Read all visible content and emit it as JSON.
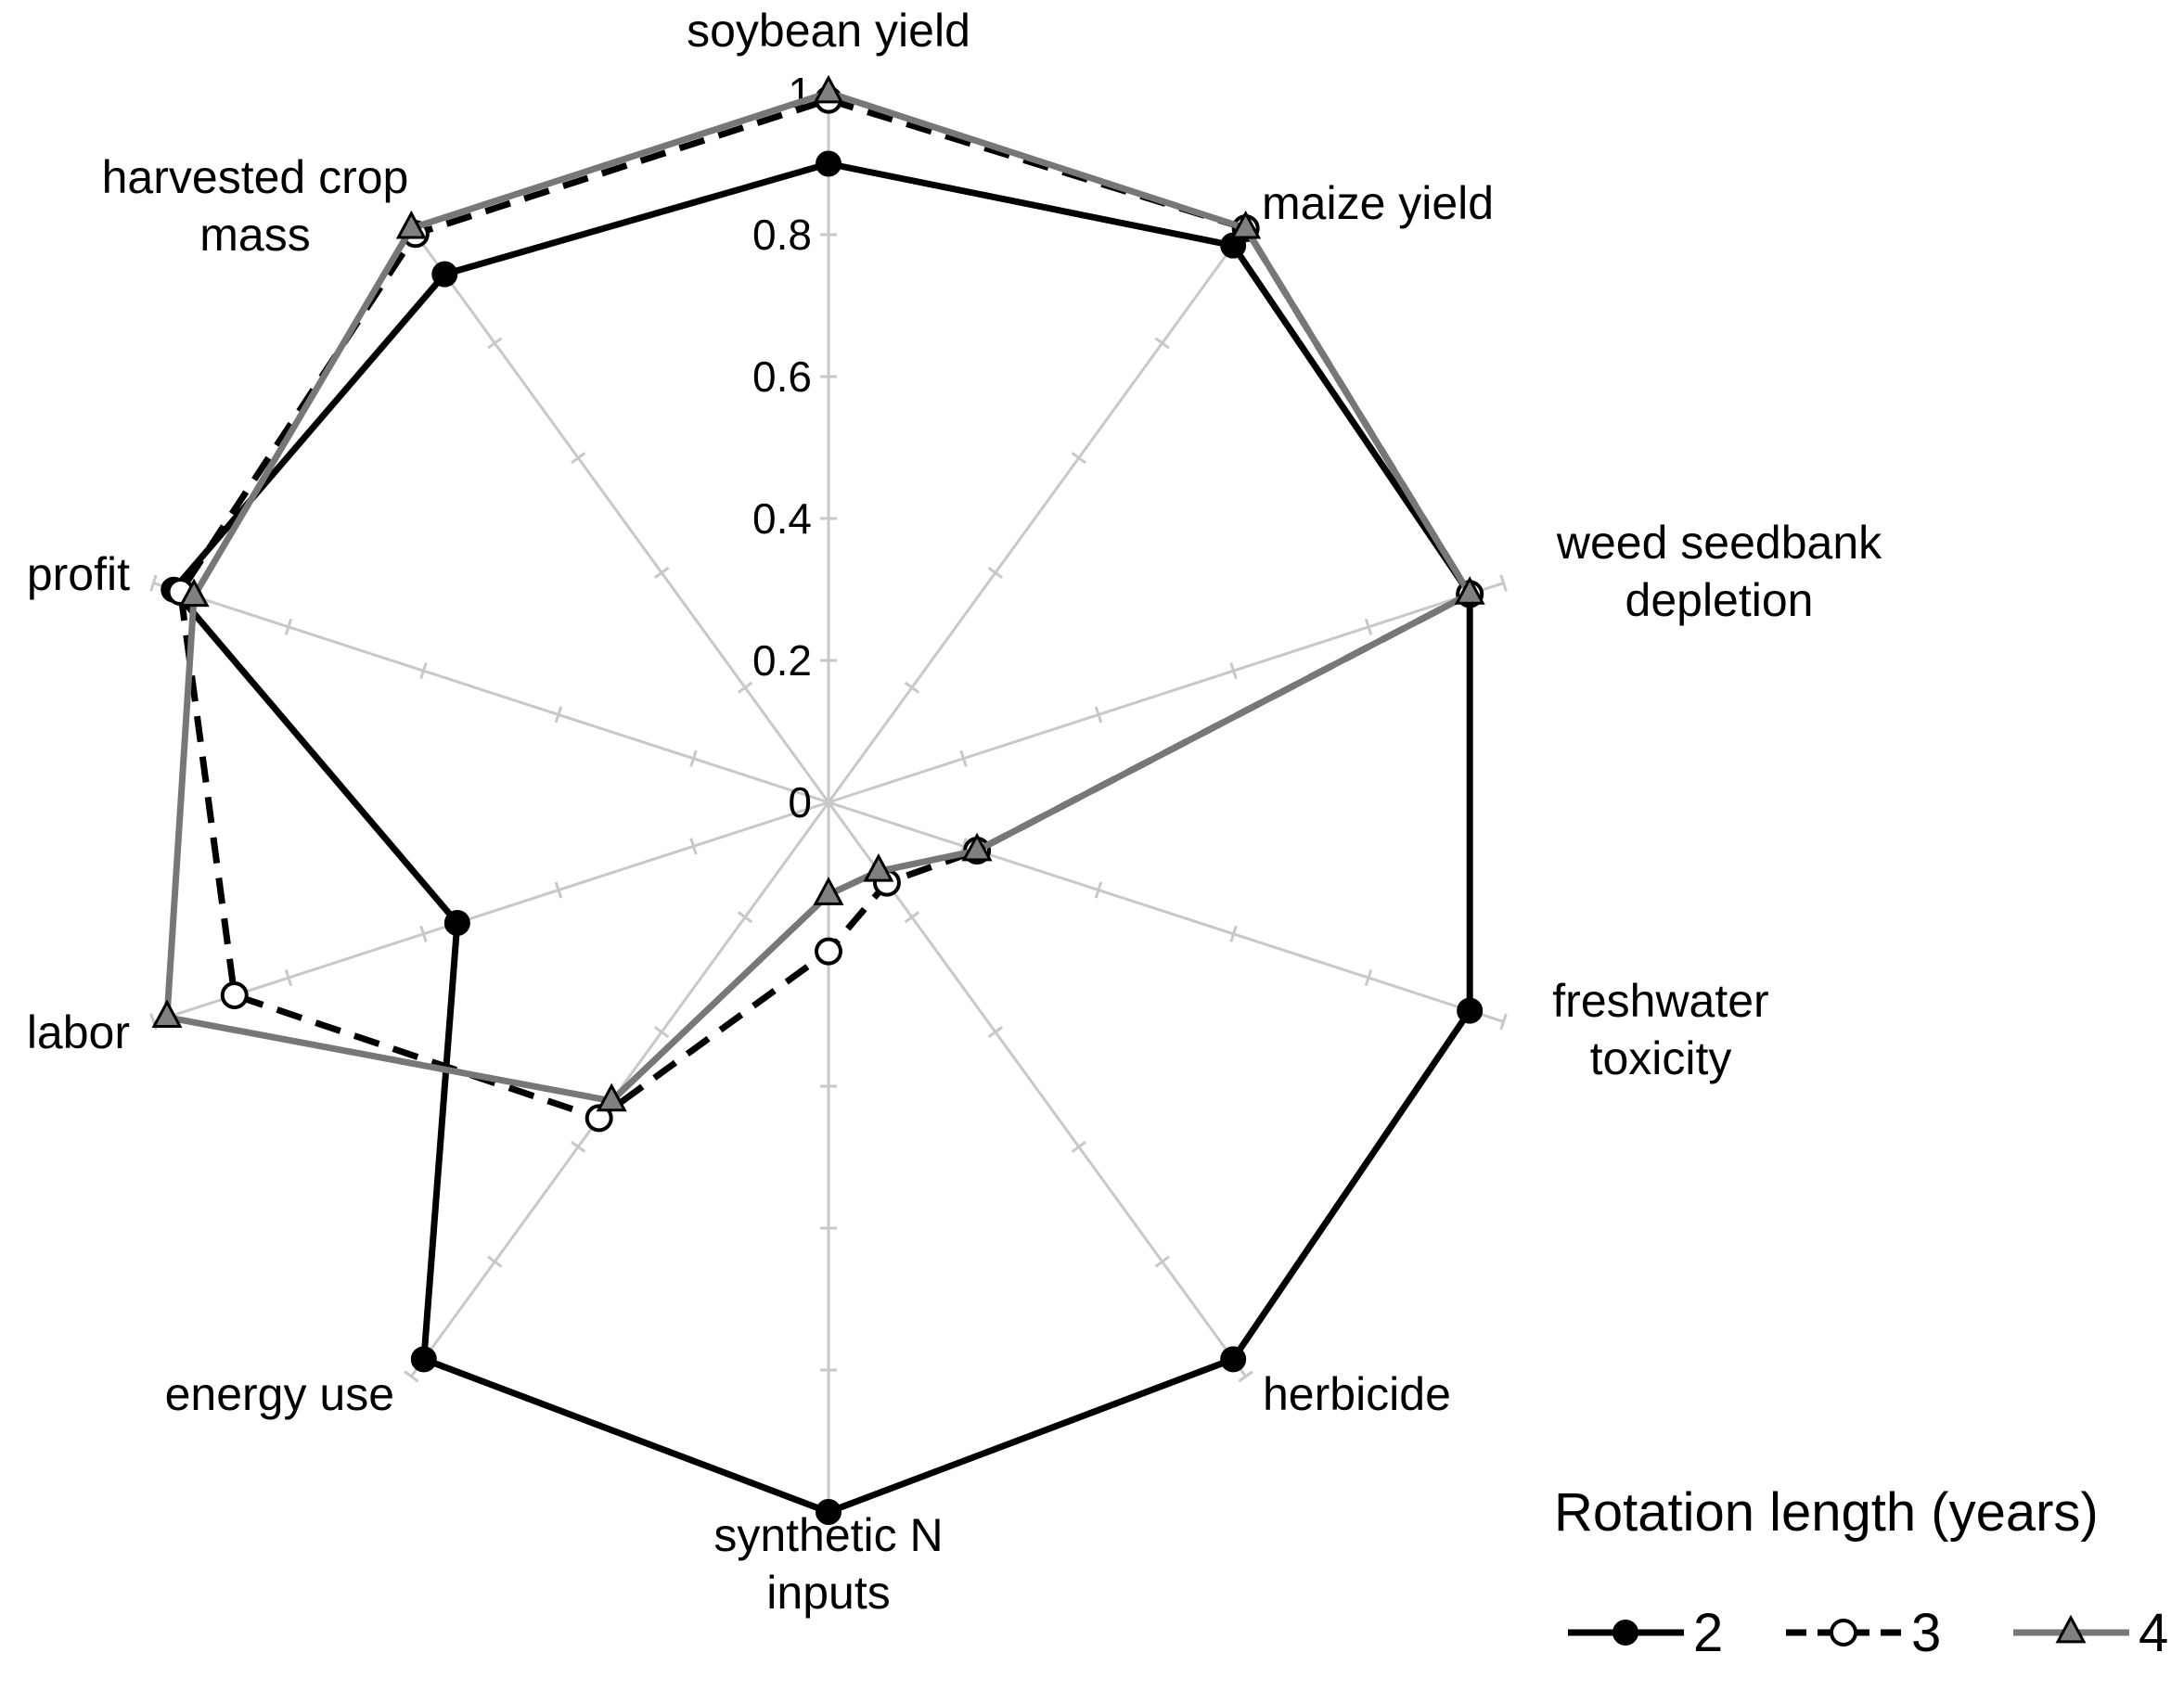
{
  "chart_data": {
    "type": "radar",
    "axes": [
      {
        "label": [
          "soybean yield"
        ]
      },
      {
        "label": [
          "maize yield"
        ]
      },
      {
        "label": [
          "weed seedbank",
          "depletion"
        ]
      },
      {
        "label": [
          "freshwater",
          "toxicity"
        ]
      },
      {
        "label": [
          "herbicide"
        ]
      },
      {
        "label": [
          "synthetic N",
          "inputs"
        ]
      },
      {
        "label": [
          "energy use"
        ]
      },
      {
        "label": [
          "labor"
        ]
      },
      {
        "label": [
          "profit"
        ]
      },
      {
        "label": [
          "harvested crop",
          "mass"
        ]
      }
    ],
    "ticks": [
      "0",
      "0.2",
      "0.4",
      "0.6",
      "0.8",
      "1"
    ],
    "range": [
      0,
      1
    ],
    "grid": true,
    "legend": {
      "title": "Rotation length (years)",
      "position": "bottom-right"
    },
    "series": [
      {
        "name": "2",
        "values": [
          0.9,
          0.97,
          0.95,
          0.95,
          0.97,
          1.0,
          0.97,
          0.55,
          0.97,
          0.92
        ],
        "color": "#000000",
        "line": "solid",
        "marker": "filled-circle"
      },
      {
        "name": "3",
        "values": [
          0.99,
          1.0,
          0.95,
          0.22,
          0.14,
          0.21,
          0.55,
          0.88,
          0.96,
          0.99
        ],
        "color": "#000000",
        "line": "dashed",
        "marker": "open-circle"
      },
      {
        "name": "4",
        "values": [
          1.0,
          1.0,
          0.95,
          0.22,
          0.12,
          0.13,
          0.52,
          0.98,
          0.94,
          1.0
        ],
        "color": "#777777",
        "line": "solid",
        "marker": "gray-triangle"
      }
    ]
  }
}
